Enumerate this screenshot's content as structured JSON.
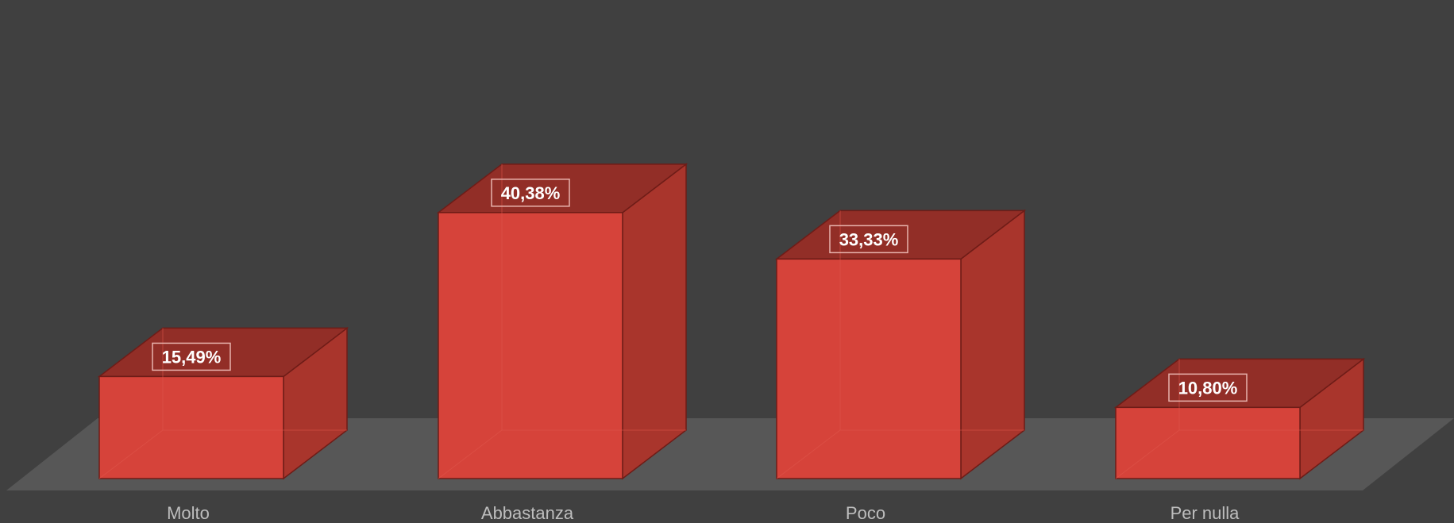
{
  "chart_data": {
    "type": "bar",
    "style": "3d-column",
    "categories": [
      "Molto",
      "Abbastanza",
      "Poco",
      "Per nulla"
    ],
    "values": [
      15.49,
      40.38,
      33.33,
      10.8
    ],
    "data_labels": [
      "15,49%",
      "40,38%",
      "33,33%",
      "10,80%"
    ],
    "title": "",
    "xlabel": "",
    "ylabel": "",
    "ylim": [
      0,
      45
    ],
    "grid": false,
    "legend": "none",
    "colors": {
      "background": "#404040",
      "floor": "#575757",
      "bar_front": "#d6433a",
      "bar_side": "#a9352c",
      "bar_top": "#922e27",
      "bar_edge": "#6e1c17",
      "category_label": "#bdbdbd",
      "data_label": "#ffffff",
      "data_label_border": "#e8b3ad"
    }
  }
}
